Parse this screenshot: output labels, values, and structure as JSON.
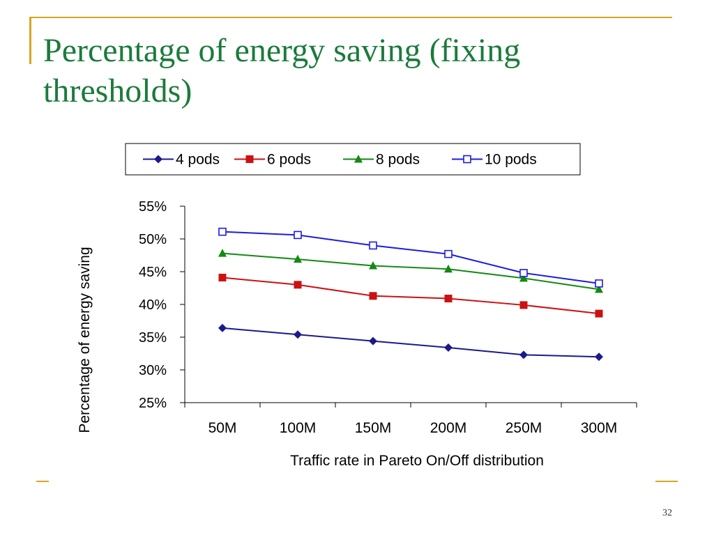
{
  "slide": {
    "title": "Percentage of energy saving (fixing thresholds)",
    "page_number": "32"
  },
  "colors": {
    "accent_line": "#d9a521",
    "title": "#1b7b3b"
  },
  "chart_data": {
    "type": "line",
    "categories": [
      "50M",
      "100M",
      "150M",
      "200M",
      "250M",
      "300M"
    ],
    "xlabel": "Traffic rate in Pareto On/Off distribution",
    "ylabel": "Percentage of energy saving",
    "ylim": [
      25,
      55
    ],
    "y_ticks": [
      "25%",
      "30%",
      "35%",
      "40%",
      "45%",
      "50%",
      "55%"
    ],
    "grid": false,
    "legend_position": "top",
    "series": [
      {
        "name": "4 pods",
        "marker": "diamond",
        "color": "#1a1a8c",
        "values": [
          36.4,
          35.4,
          34.4,
          33.4,
          32.3,
          32.0
        ]
      },
      {
        "name": "6 pods",
        "marker": "square",
        "color": "#cc1111",
        "values": [
          44.1,
          43.0,
          41.3,
          40.9,
          39.9,
          38.6
        ]
      },
      {
        "name": "8 pods",
        "marker": "triangle",
        "color": "#128a12",
        "values": [
          47.8,
          46.9,
          45.9,
          45.4,
          44.0,
          42.3
        ]
      },
      {
        "name": "10 pods",
        "marker": "open-square",
        "color": "#1c1cdd",
        "values": [
          51.1,
          50.6,
          49.0,
          47.7,
          44.8,
          43.2
        ]
      }
    ]
  }
}
